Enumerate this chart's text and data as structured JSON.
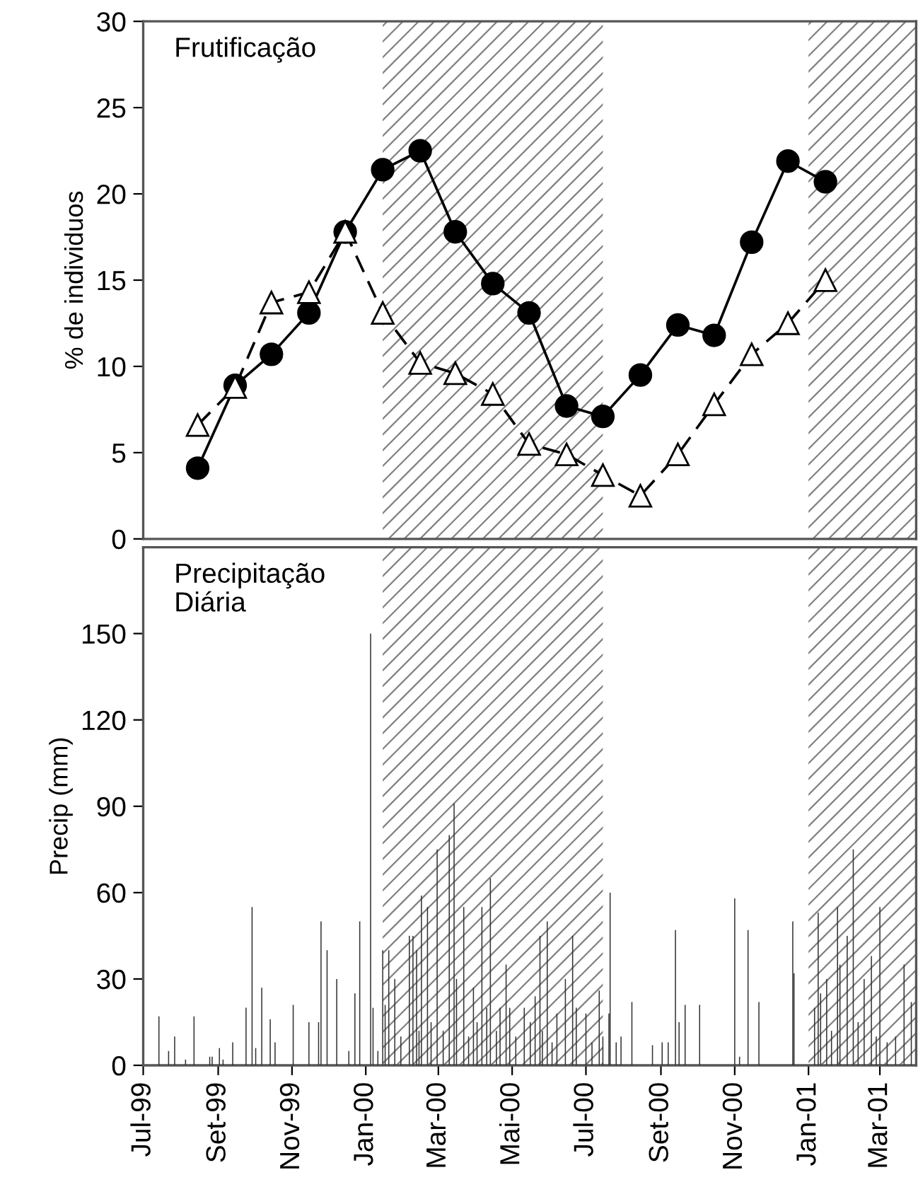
{
  "chart_data": [
    {
      "type": "line",
      "title": "Frutificação",
      "ylabel": "% de individuos",
      "x": [
        "1999-08-15",
        "1999-09-15",
        "1999-10-15",
        "1999-11-15",
        "1999-12-15",
        "2000-01-15",
        "2000-02-15",
        "2000-03-15",
        "2000-04-15",
        "2000-05-15",
        "2000-06-15",
        "2000-07-15",
        "2000-08-15",
        "2000-09-15",
        "2000-10-15",
        "2000-11-15",
        "2000-12-15",
        "2001-01-15"
      ],
      "series": [
        {
          "color": "#000000",
          "marker": "circle",
          "line_style": "solid",
          "values": [
            4.1,
            8.9,
            10.7,
            13.1,
            17.8,
            21.4,
            22.5,
            17.8,
            14.8,
            13.1,
            7.7,
            7.1,
            9.5,
            12.4,
            11.8,
            17.2,
            21.9,
            20.7
          ]
        },
        {
          "color": "#000000",
          "marker": "triangle",
          "line_style": "dashed",
          "values": [
            6.6,
            8.8,
            13.7,
            14.3,
            17.8,
            13.1,
            10.2,
            9.6,
            8.4,
            5.5,
            4.9,
            3.7,
            2.5,
            4.9,
            7.8,
            10.7,
            12.5,
            15.0
          ]
        }
      ],
      "xlim": [
        "1999-07-01",
        "2001-03-31"
      ],
      "ylim": [
        0,
        30
      ],
      "yticks": [
        0,
        5,
        10,
        15,
        20,
        25,
        30
      ],
      "bands": [
        {
          "axis": "x",
          "from": "2000-01-15",
          "to": "2000-07-15",
          "color": "#808080"
        },
        {
          "axis": "x",
          "from": "2001-01-01",
          "to": "2001-03-31",
          "color": "#808080"
        }
      ],
      "tick_labels": "y",
      "grid": false,
      "legend": false
    },
    {
      "type": "bar",
      "title": "Precipitação\nDiária",
      "ylabel": "Precip (mm)",
      "x": [
        "1999-07-14",
        "1999-07-22",
        "1999-07-27",
        "1999-08-05",
        "1999-08-12",
        "1999-08-25",
        "1999-08-27",
        "1999-09-02",
        "1999-09-05",
        "1999-09-13",
        "1999-09-24",
        "1999-09-29",
        "1999-10-02",
        "1999-10-07",
        "1999-10-14",
        "1999-10-18",
        "1999-11-02",
        "1999-11-15",
        "1999-11-23",
        "1999-11-25",
        "1999-11-30",
        "1999-12-08",
        "1999-12-18",
        "1999-12-23",
        "1999-12-27",
        "2000-01-05",
        "2000-01-07",
        "2000-01-11",
        "2000-01-15",
        "2000-01-17",
        "2000-01-20",
        "2000-01-25",
        "2000-01-30",
        "2000-02-06",
        "2000-02-09",
        "2000-02-12",
        "2000-02-14",
        "2000-02-16",
        "2000-02-21",
        "2000-02-24",
        "2000-02-29",
        "2000-03-05",
        "2000-03-10",
        "2000-03-14",
        "2000-03-16",
        "2000-03-22",
        "2000-03-26",
        "2000-03-30",
        "2000-04-02",
        "2000-04-06",
        "2000-04-10",
        "2000-04-13",
        "2000-04-18",
        "2000-04-21",
        "2000-04-26",
        "2000-04-29",
        "2000-05-04",
        "2000-05-11",
        "2000-05-16",
        "2000-05-20",
        "2000-05-24",
        "2000-05-26",
        "2000-05-30",
        "2000-06-03",
        "2000-06-07",
        "2000-06-14",
        "2000-06-20",
        "2000-06-23",
        "2000-07-01",
        "2000-07-06",
        "2000-07-12",
        "2000-07-15",
        "2000-07-20",
        "2000-07-21",
        "2000-07-26",
        "2000-07-30",
        "2000-08-08",
        "2000-08-25",
        "2000-09-02",
        "2000-09-07",
        "2000-09-13",
        "2000-09-16",
        "2000-09-21",
        "2000-10-03",
        "2000-11-01",
        "2000-11-05",
        "2000-11-12",
        "2000-11-21",
        "2000-12-19",
        "2000-12-20",
        "2001-01-06",
        "2001-01-09",
        "2001-01-11",
        "2001-01-16",
        "2001-01-20",
        "2001-01-25",
        "2001-01-27",
        "2001-02-02",
        "2001-02-07",
        "2001-02-11",
        "2001-02-16",
        "2001-02-22",
        "2001-02-26",
        "2001-03-01",
        "2001-03-07",
        "2001-03-14",
        "2001-03-21",
        "2001-03-27"
      ],
      "values": [
        17,
        5,
        10,
        2,
        17,
        3,
        3,
        6,
        2,
        8,
        20,
        55,
        6,
        27,
        16,
        8,
        21,
        15,
        15,
        50,
        40,
        30,
        5,
        25,
        50,
        150,
        20,
        5,
        40,
        21,
        40,
        30,
        10,
        45,
        45,
        40,
        12,
        59,
        55,
        15,
        75,
        12,
        80,
        91,
        30,
        55,
        10,
        27,
        15,
        55,
        20,
        65,
        12,
        20,
        35,
        20,
        10,
        20,
        15,
        24,
        45,
        12,
        50,
        8,
        18,
        30,
        45,
        20,
        18,
        8,
        26,
        10,
        18,
        60,
        8,
        10,
        22,
        7,
        8,
        8,
        47,
        15,
        21,
        21,
        58,
        3,
        47,
        22,
        50,
        32,
        20,
        53,
        25,
        30,
        12,
        55,
        35,
        45,
        75,
        15,
        30,
        38,
        10,
        55,
        8,
        10,
        35,
        22
      ],
      "color": "#333333",
      "xlim": [
        "1999-07-01",
        "2001-03-31"
      ],
      "xticks": [
        {
          "value": "1999-07-01",
          "label": "Jul-99"
        },
        {
          "value": "1999-09-01",
          "label": "Set-99"
        },
        {
          "value": "1999-11-01",
          "label": "Nov-99"
        },
        {
          "value": "2000-01-01",
          "label": "Jan-00"
        },
        {
          "value": "2000-03-01",
          "label": "Mar-00"
        },
        {
          "value": "2000-05-01",
          "label": "Mai-00"
        },
        {
          "value": "2000-07-01",
          "label": "Jul-00"
        },
        {
          "value": "2000-09-01",
          "label": "Set-00"
        },
        {
          "value": "2000-11-01",
          "label": "Nov-00"
        },
        {
          "value": "2001-01-01",
          "label": "Jan-01"
        },
        {
          "value": "2001-03-01",
          "label": "Mar-01"
        }
      ],
      "ylim": [
        0,
        180
      ],
      "yticks": [
        0,
        30,
        60,
        90,
        120,
        150
      ],
      "bands": [
        {
          "axis": "x",
          "from": "2000-01-15",
          "to": "2000-07-15",
          "color": "#808080"
        },
        {
          "axis": "x",
          "from": "2001-01-01",
          "to": "2001-03-31",
          "color": "#808080"
        }
      ],
      "grid": false,
      "legend": false
    }
  ]
}
